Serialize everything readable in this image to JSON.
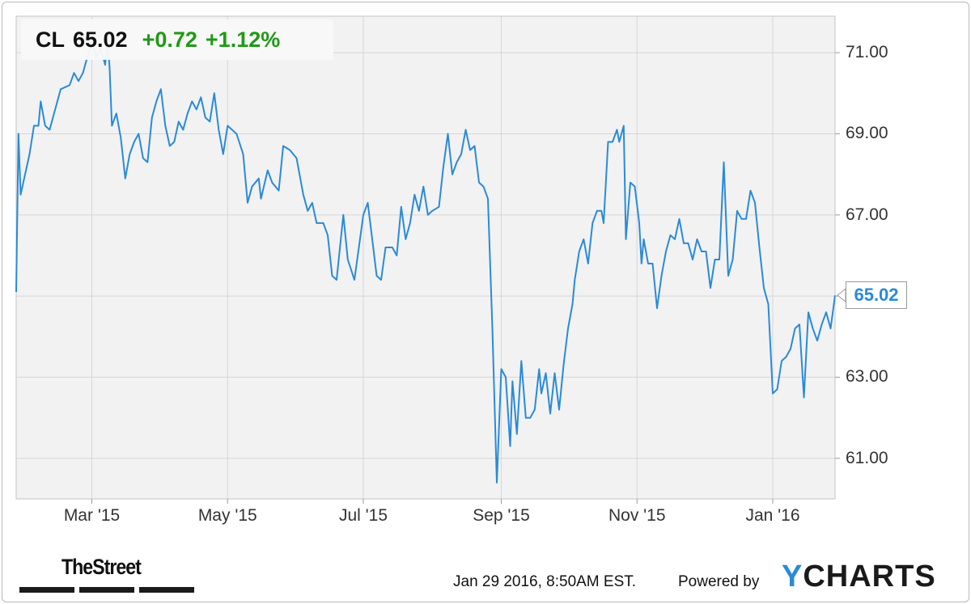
{
  "header": {
    "ticker": "CL",
    "price": "65.02",
    "change": "+0.72",
    "change_pct": "+1.12%"
  },
  "last_value_label": "65.02",
  "footer": {
    "timestamp": "Jan 29 2016, 8:50AM EST.",
    "powered_by": "Powered by",
    "brand_y": "Y",
    "brand_rest": "CHARTS",
    "publisher": "TheStreet"
  },
  "colors": {
    "line": "#2a8ad8",
    "up": "#1f9a16",
    "grid": "#d6d6d6",
    "plot_bg": "#f2f2f2"
  },
  "chart_data": {
    "type": "line",
    "title": "",
    "xlabel": "",
    "ylabel": "",
    "ylim": [
      60.0,
      71.9
    ],
    "yticks": [
      61.0,
      63.0,
      65.0,
      67.0,
      69.0,
      71.0
    ],
    "ytick_labels": [
      "61.00",
      "63.00",
      "65.00",
      "67.00",
      "69.00",
      "71.00"
    ],
    "xlim": [
      "2015-01-26",
      "2016-01-29"
    ],
    "xticks": [
      "2015-03-01",
      "2015-05-01",
      "2015-07-01",
      "2015-09-01",
      "2015-11-01",
      "2016-01-01"
    ],
    "xtick_labels": [
      "Mar '15",
      "May '15",
      "Jul '15",
      "Sep '15",
      "Nov '15",
      "Jan '16"
    ],
    "grid": true,
    "legend": "none",
    "series": [
      {
        "values": [
          [
            "2015-01-26",
            65.1
          ],
          [
            "2015-01-27",
            69.0
          ],
          [
            "2015-01-28",
            67.5
          ],
          [
            "2015-02-01",
            68.5
          ],
          [
            "2015-02-03",
            69.2
          ],
          [
            "2015-02-05",
            69.2
          ],
          [
            "2015-02-06",
            69.8
          ],
          [
            "2015-02-08",
            69.2
          ],
          [
            "2015-02-10",
            69.1
          ],
          [
            "2015-02-12",
            69.5
          ],
          [
            "2015-02-15",
            70.1
          ],
          [
            "2015-02-19",
            70.2
          ],
          [
            "2015-02-21",
            70.5
          ],
          [
            "2015-02-23",
            70.3
          ],
          [
            "2015-02-25",
            70.5
          ],
          [
            "2015-02-27",
            70.9
          ],
          [
            "2015-03-01",
            71.2
          ],
          [
            "2015-03-03",
            70.9
          ],
          [
            "2015-03-05",
            71.1
          ],
          [
            "2015-03-07",
            70.7
          ],
          [
            "2015-03-08",
            71.4
          ],
          [
            "2015-03-09",
            70.6
          ],
          [
            "2015-03-10",
            69.2
          ],
          [
            "2015-03-12",
            69.5
          ],
          [
            "2015-03-14",
            68.9
          ],
          [
            "2015-03-16",
            67.9
          ],
          [
            "2015-03-18",
            68.5
          ],
          [
            "2015-03-20",
            68.8
          ],
          [
            "2015-03-22",
            69.0
          ],
          [
            "2015-03-24",
            68.4
          ],
          [
            "2015-03-26",
            68.3
          ],
          [
            "2015-03-28",
            69.4
          ],
          [
            "2015-03-30",
            69.8
          ],
          [
            "2015-04-01",
            70.1
          ],
          [
            "2015-04-03",
            69.2
          ],
          [
            "2015-04-05",
            68.7
          ],
          [
            "2015-04-07",
            68.8
          ],
          [
            "2015-04-09",
            69.3
          ],
          [
            "2015-04-11",
            69.1
          ],
          [
            "2015-04-13",
            69.5
          ],
          [
            "2015-04-15",
            69.8
          ],
          [
            "2015-04-17",
            69.6
          ],
          [
            "2015-04-19",
            69.9
          ],
          [
            "2015-04-21",
            69.4
          ],
          [
            "2015-04-23",
            69.3
          ],
          [
            "2015-04-25",
            70.0
          ],
          [
            "2015-04-27",
            69.1
          ],
          [
            "2015-04-29",
            68.5
          ],
          [
            "2015-05-01",
            69.2
          ],
          [
            "2015-05-05",
            69.0
          ],
          [
            "2015-05-08",
            68.5
          ],
          [
            "2015-05-10",
            67.3
          ],
          [
            "2015-05-12",
            67.7
          ],
          [
            "2015-05-15",
            67.9
          ],
          [
            "2015-05-16",
            67.4
          ],
          [
            "2015-05-19",
            68.1
          ],
          [
            "2015-05-21",
            67.8
          ],
          [
            "2015-05-24",
            67.6
          ],
          [
            "2015-05-26",
            68.7
          ],
          [
            "2015-05-29",
            68.6
          ],
          [
            "2015-06-01",
            68.4
          ],
          [
            "2015-06-04",
            67.5
          ],
          [
            "2015-06-06",
            67.1
          ],
          [
            "2015-06-08",
            67.3
          ],
          [
            "2015-06-10",
            66.8
          ],
          [
            "2015-06-13",
            66.8
          ],
          [
            "2015-06-15",
            66.5
          ],
          [
            "2015-06-17",
            65.5
          ],
          [
            "2015-06-19",
            65.4
          ],
          [
            "2015-06-22",
            67.0
          ],
          [
            "2015-06-24",
            65.9
          ],
          [
            "2015-06-27",
            65.4
          ],
          [
            "2015-06-29",
            66.2
          ],
          [
            "2015-07-01",
            67.0
          ],
          [
            "2015-07-03",
            67.3
          ],
          [
            "2015-07-05",
            66.4
          ],
          [
            "2015-07-07",
            65.5
          ],
          [
            "2015-07-09",
            65.4
          ],
          [
            "2015-07-11",
            66.2
          ],
          [
            "2015-07-14",
            66.2
          ],
          [
            "2015-07-16",
            66.0
          ],
          [
            "2015-07-18",
            67.2
          ],
          [
            "2015-07-20",
            66.4
          ],
          [
            "2015-07-22",
            66.8
          ],
          [
            "2015-07-24",
            67.5
          ],
          [
            "2015-07-26",
            67.1
          ],
          [
            "2015-07-28",
            67.7
          ],
          [
            "2015-07-30",
            67.0
          ],
          [
            "2015-08-01",
            67.1
          ],
          [
            "2015-08-04",
            67.2
          ],
          [
            "2015-08-06",
            68.2
          ],
          [
            "2015-08-08",
            69.0
          ],
          [
            "2015-08-10",
            68.0
          ],
          [
            "2015-08-12",
            68.3
          ],
          [
            "2015-08-14",
            68.5
          ],
          [
            "2015-08-16",
            69.1
          ],
          [
            "2015-08-18",
            68.6
          ],
          [
            "2015-08-20",
            68.7
          ],
          [
            "2015-08-22",
            67.8
          ],
          [
            "2015-08-24",
            67.7
          ],
          [
            "2015-08-26",
            67.4
          ],
          [
            "2015-08-28",
            64.2
          ],
          [
            "2015-08-30",
            60.4
          ],
          [
            "2015-09-01",
            63.2
          ],
          [
            "2015-09-03",
            63.0
          ],
          [
            "2015-09-05",
            61.3
          ],
          [
            "2015-09-06",
            62.9
          ],
          [
            "2015-09-08",
            61.6
          ],
          [
            "2015-09-10",
            63.4
          ],
          [
            "2015-09-12",
            62.0
          ],
          [
            "2015-09-14",
            62.0
          ],
          [
            "2015-09-16",
            62.2
          ],
          [
            "2015-09-18",
            63.2
          ],
          [
            "2015-09-19",
            62.6
          ],
          [
            "2015-09-21",
            63.1
          ],
          [
            "2015-09-23",
            62.1
          ],
          [
            "2015-09-25",
            63.1
          ],
          [
            "2015-09-27",
            62.2
          ],
          [
            "2015-09-29",
            63.3
          ],
          [
            "2015-10-01",
            64.2
          ],
          [
            "2015-10-03",
            64.8
          ],
          [
            "2015-10-04",
            65.4
          ],
          [
            "2015-10-06",
            66.1
          ],
          [
            "2015-10-08",
            66.4
          ],
          [
            "2015-10-10",
            65.8
          ],
          [
            "2015-10-12",
            66.8
          ],
          [
            "2015-10-14",
            67.1
          ],
          [
            "2015-10-16",
            67.1
          ],
          [
            "2015-10-17",
            66.8
          ],
          [
            "2015-10-19",
            68.8
          ],
          [
            "2015-10-21",
            68.8
          ],
          [
            "2015-10-23",
            69.1
          ],
          [
            "2015-10-24",
            68.8
          ],
          [
            "2015-10-26",
            69.2
          ],
          [
            "2015-10-27",
            66.4
          ],
          [
            "2015-10-29",
            67.8
          ],
          [
            "2015-10-31",
            67.7
          ],
          [
            "2015-11-02",
            66.8
          ],
          [
            "2015-11-03",
            65.8
          ],
          [
            "2015-11-04",
            66.4
          ],
          [
            "2015-11-06",
            65.8
          ],
          [
            "2015-11-08",
            65.8
          ],
          [
            "2015-11-10",
            64.7
          ],
          [
            "2015-11-12",
            65.5
          ],
          [
            "2015-11-14",
            66.1
          ],
          [
            "2015-11-16",
            66.5
          ],
          [
            "2015-11-18",
            66.4
          ],
          [
            "2015-11-20",
            66.9
          ],
          [
            "2015-11-22",
            66.3
          ],
          [
            "2015-11-24",
            66.3
          ],
          [
            "2015-11-26",
            65.9
          ],
          [
            "2015-11-28",
            66.4
          ],
          [
            "2015-11-30",
            66.1
          ],
          [
            "2015-12-02",
            66.1
          ],
          [
            "2015-12-04",
            65.2
          ],
          [
            "2015-12-06",
            65.9
          ],
          [
            "2015-12-08",
            65.9
          ],
          [
            "2015-12-10",
            68.3
          ],
          [
            "2015-12-12",
            65.5
          ],
          [
            "2015-12-14",
            65.9
          ],
          [
            "2015-12-16",
            67.1
          ],
          [
            "2015-12-18",
            66.9
          ],
          [
            "2015-12-20",
            66.9
          ],
          [
            "2015-12-22",
            67.6
          ],
          [
            "2015-12-24",
            67.3
          ],
          [
            "2015-12-26",
            66.2
          ],
          [
            "2015-12-28",
            65.2
          ],
          [
            "2015-12-30",
            64.8
          ],
          [
            "2016-01-01",
            62.6
          ],
          [
            "2016-01-03",
            62.7
          ],
          [
            "2016-01-05",
            63.4
          ],
          [
            "2016-01-07",
            63.5
          ],
          [
            "2016-01-09",
            63.7
          ],
          [
            "2016-01-11",
            64.2
          ],
          [
            "2016-01-13",
            64.3
          ],
          [
            "2016-01-15",
            62.5
          ],
          [
            "2016-01-17",
            64.6
          ],
          [
            "2016-01-19",
            64.2
          ],
          [
            "2016-01-21",
            63.9
          ],
          [
            "2016-01-23",
            64.3
          ],
          [
            "2016-01-25",
            64.6
          ],
          [
            "2016-01-27",
            64.2
          ],
          [
            "2016-01-29",
            65.02
          ]
        ]
      }
    ]
  }
}
